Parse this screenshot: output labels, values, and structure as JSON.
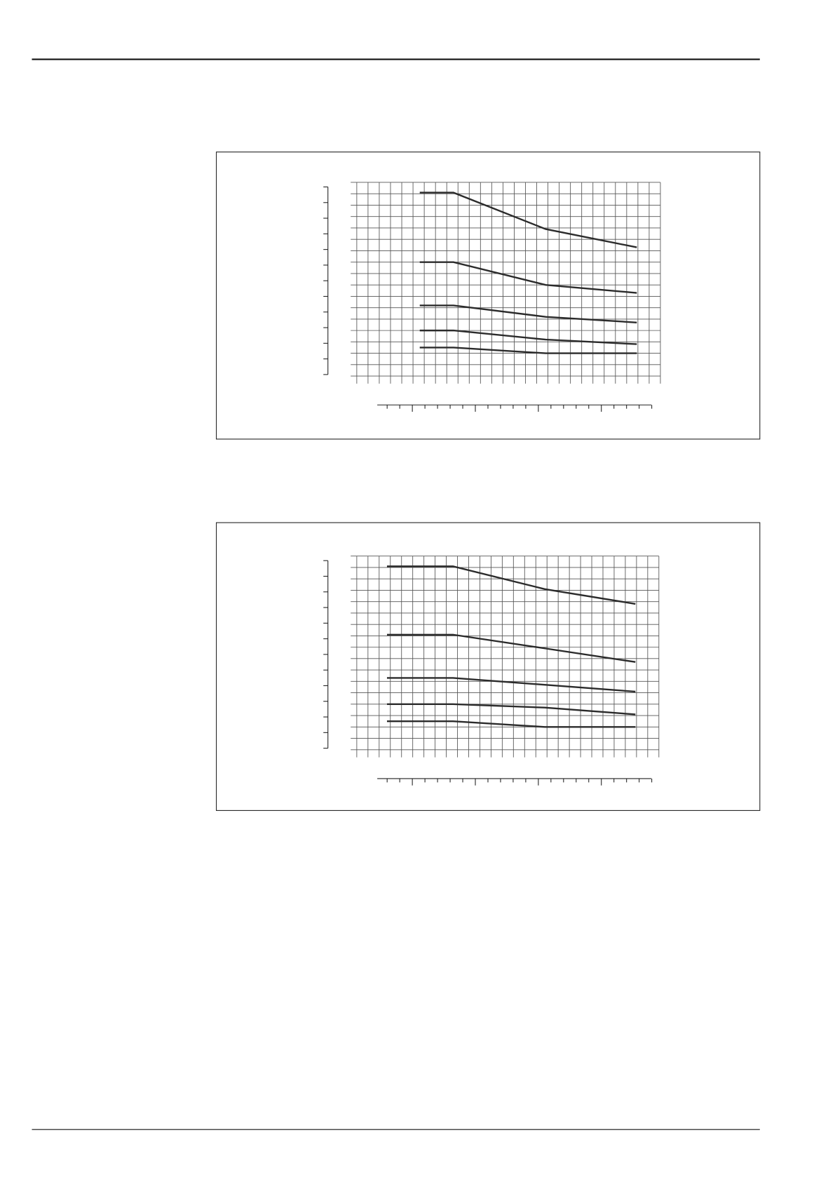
{
  "chart_data": [
    {
      "type": "line",
      "xlim": [
        0,
        27
      ],
      "ylim": [
        0,
        17
      ],
      "grid": true,
      "x": [
        5.6,
        8.6,
        16.8,
        24.9
      ],
      "series": [
        {
          "color": "#2b2b2b",
          "values": [
            16.1,
            16.1,
            12.9,
            11.3
          ]
        },
        {
          "color": "#2b2b2b",
          "values": [
            10,
            10,
            8,
            7.3
          ]
        },
        {
          "color": "#2b2b2b",
          "values": [
            6.2,
            6.2,
            5.2,
            4.7
          ]
        },
        {
          "color": "#2b2b2b",
          "values": [
            4,
            4,
            3.2,
            2.8
          ]
        },
        {
          "color": "#2b2b2b",
          "values": [
            2.5,
            2.5,
            2,
            2
          ]
        }
      ]
    },
    {
      "type": "line",
      "xlim": [
        0,
        27
      ],
      "ylim": [
        0,
        17
      ],
      "grid": true,
      "x": [
        2.7,
        8.6,
        16.8,
        24.9
      ],
      "series": [
        {
          "color": "#2b2b2b",
          "values": [
            16.1,
            16.1,
            14.1,
            12.8
          ]
        },
        {
          "color": "#2b2b2b",
          "values": [
            10.1,
            10.1,
            8.9,
            7.7
          ]
        },
        {
          "color": "#2b2b2b",
          "values": [
            6.3,
            6.3,
            5.7,
            5.1
          ]
        },
        {
          "color": "#2b2b2b",
          "values": [
            4,
            4,
            3.7,
            3.1
          ]
        },
        {
          "color": "#2b2b2b",
          "values": [
            2.5,
            2.5,
            2,
            2
          ]
        }
      ]
    }
  ]
}
